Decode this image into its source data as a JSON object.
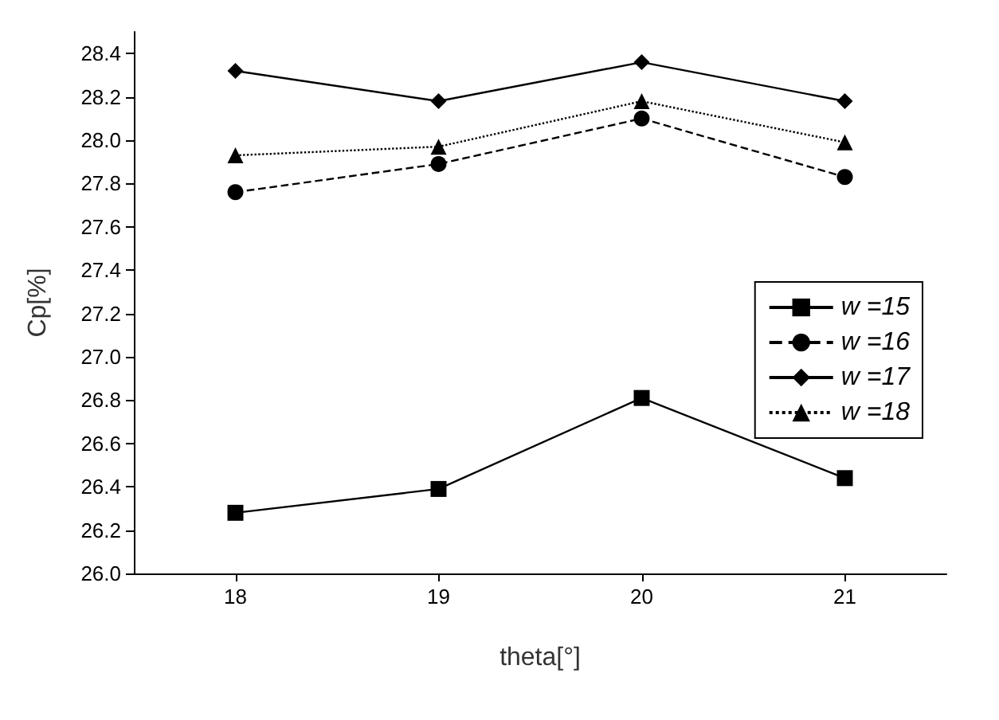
{
  "chart_data": {
    "type": "line",
    "xlabel": "theta[°]",
    "ylabel": "Cp[%]",
    "x": [
      18,
      19,
      20,
      21
    ],
    "xlim": [
      17.5,
      21.5
    ],
    "xticks": [
      18,
      19,
      20,
      21
    ],
    "ylim": [
      26.0,
      28.5
    ],
    "yticks": [
      {
        "value": 26.0,
        "label": "26.0"
      },
      {
        "value": 26.2,
        "label": "26.2"
      },
      {
        "value": 26.4,
        "label": "26.4"
      },
      {
        "value": 26.6,
        "label": "26.6"
      },
      {
        "value": 26.8,
        "label": "26.8"
      },
      {
        "value": 27.0,
        "label": "27.0"
      },
      {
        "value": 27.2,
        "label": "27.2"
      },
      {
        "value": 27.4,
        "label": "27.4"
      },
      {
        "value": 27.6,
        "label": "27.6"
      },
      {
        "value": 27.8,
        "label": "27.8"
      },
      {
        "value": 28.0,
        "label": "28.0"
      },
      {
        "value": 28.2,
        "label": "28.2"
      },
      {
        "value": 28.4,
        "label": "28.4"
      }
    ],
    "grid": false,
    "legend": "right",
    "series": [
      {
        "name": "w =15",
        "color": "#000000",
        "marker": "square",
        "line_style": "solid",
        "values": [
          26.28,
          26.39,
          26.81,
          26.44
        ]
      },
      {
        "name": "w =16",
        "color": "#000000",
        "marker": "circle",
        "line_style": "dashed",
        "values": [
          27.76,
          27.89,
          28.1,
          27.83
        ]
      },
      {
        "name": "w =17",
        "color": "#000000",
        "marker": "diamond",
        "line_style": "solid",
        "values": [
          28.32,
          28.18,
          28.36,
          28.18
        ]
      },
      {
        "name": "w =18",
        "color": "#000000",
        "marker": "triangle",
        "line_style": "dotted",
        "values": [
          27.93,
          27.97,
          28.18,
          27.99
        ]
      }
    ]
  }
}
